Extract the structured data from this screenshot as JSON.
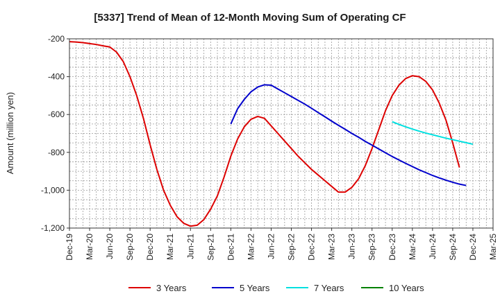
{
  "chart_data": {
    "type": "line",
    "title": "[5337]  Trend of Mean of 12-Month Moving Sum of Operating CF",
    "xlabel": "",
    "ylabel": "Amount (million yen)",
    "ylim": [
      -1200,
      -200
    ],
    "yticks": [
      -200,
      -400,
      -600,
      -800,
      -1000,
      -1200
    ],
    "ytick_labels": [
      "-200",
      "-400",
      "-600",
      "-800",
      "-1,000",
      "-1,200"
    ],
    "x_start": "Dec-19",
    "x_end": "Mar-25",
    "xtick_labels": [
      "Dec-19",
      "Mar-20",
      "Jun-20",
      "Sep-20",
      "Dec-20",
      "Mar-21",
      "Jun-21",
      "Sep-21",
      "Dec-21",
      "Mar-22",
      "Jun-22",
      "Sep-22",
      "Dec-22",
      "Mar-23",
      "Jun-23",
      "Sep-23",
      "Dec-23",
      "Mar-24",
      "Jun-24",
      "Sep-24",
      "Dec-24",
      "Mar-25"
    ],
    "grid": true,
    "legend_position": "bottom",
    "series": [
      {
        "name": "3 Years",
        "color": "#dd0000",
        "start_month_index": 0,
        "values": [
          -215,
          -217,
          -220,
          -225,
          -230,
          -237,
          -243,
          -270,
          -320,
          -400,
          -500,
          -620,
          -760,
          -890,
          -1000,
          -1080,
          -1140,
          -1175,
          -1190,
          -1185,
          -1155,
          -1100,
          -1030,
          -930,
          -820,
          -730,
          -665,
          -625,
          -610,
          -620,
          -660,
          -700,
          -740,
          -780,
          -820,
          -855,
          -890,
          -920,
          -950,
          -980,
          -1010,
          -1010,
          -985,
          -940,
          -870,
          -780,
          -680,
          -580,
          -500,
          -445,
          -410,
          -395,
          -400,
          -425,
          -470,
          -540,
          -630,
          -750,
          -880
        ]
      },
      {
        "name": "5 Years",
        "color": "#0000cc",
        "start_month_index": 24,
        "values": [
          -650,
          -570,
          -520,
          -480,
          -455,
          -443,
          -445,
          -465,
          -485,
          -505,
          -525,
          -545,
          -567,
          -590,
          -612,
          -635,
          -657,
          -678,
          -700,
          -720,
          -742,
          -762,
          -782,
          -802,
          -822,
          -840,
          -858,
          -875,
          -892,
          -907,
          -922,
          -935,
          -947,
          -958,
          -968,
          -975
        ]
      },
      {
        "name": "7 Years",
        "color": "#00e0e0",
        "start_month_index": 48,
        "values": [
          -638,
          -652,
          -665,
          -677,
          -688,
          -698,
          -707,
          -716,
          -725,
          -733,
          -741,
          -749,
          -757
        ]
      },
      {
        "name": "10 Years",
        "color": "#008000",
        "start_month_index": 60,
        "values": []
      }
    ]
  }
}
